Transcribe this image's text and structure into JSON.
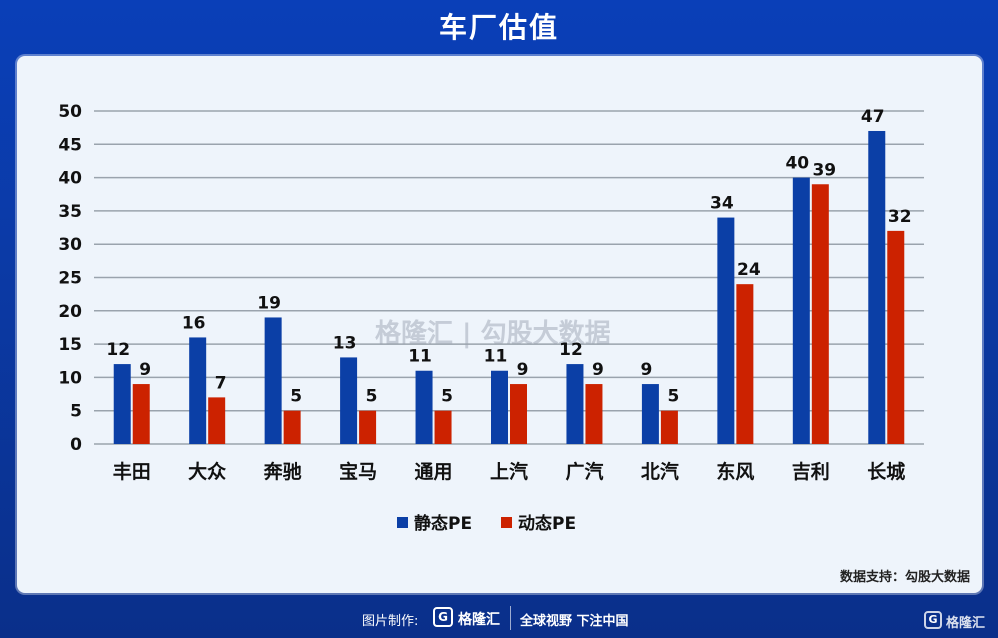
{
  "title": "车厂估值",
  "source": "数据支持：勾股大数据",
  "watermark": {
    "text": "格隆汇 | 勾股大数据"
  },
  "footer": {
    "made_by": "图片制作:",
    "brand": "格隆汇",
    "slogan": "全球视野 下注中国",
    "brand_right": "格隆汇",
    "logo_glyph": "G"
  },
  "colors": {
    "static_pe": "#0b3fa6",
    "dynamic_pe": "#cc2200",
    "grid": "#9aa3ad"
  },
  "chart_data": {
    "type": "bar",
    "title": "",
    "xlabel": "",
    "ylabel": "",
    "ylim": [
      0,
      50
    ],
    "yticks": [
      0,
      5,
      10,
      15,
      20,
      25,
      30,
      35,
      40,
      45,
      50
    ],
    "grid": true,
    "legend_position": "bottom",
    "categories": [
      "丰田",
      "大众",
      "奔驰",
      "宝马",
      "通用",
      "上汽",
      "广汽",
      "北汽",
      "东风",
      "吉利",
      "长城"
    ],
    "series": [
      {
        "name": "静态PE",
        "values": [
          12,
          16,
          19,
          13,
          11,
          11,
          12,
          9,
          34,
          40,
          47
        ]
      },
      {
        "name": "动态PE",
        "values": [
          9,
          7,
          5,
          5,
          5,
          9,
          9,
          5,
          24,
          39,
          32
        ]
      }
    ]
  }
}
